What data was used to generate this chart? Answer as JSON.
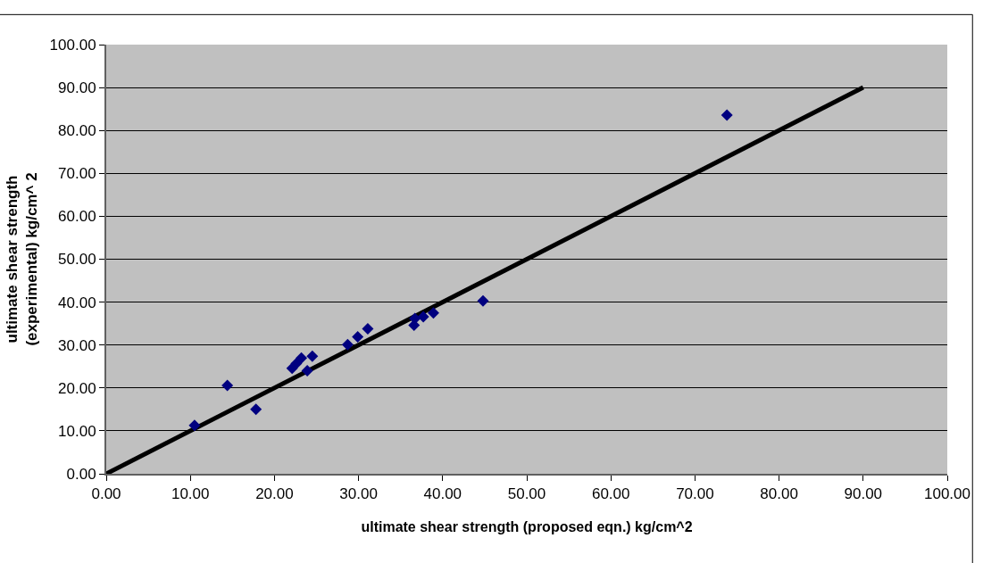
{
  "chart_data": {
    "type": "scatter",
    "xlabel": "ultimate shear strength (proposed eqn.) kg/cm^2",
    "ylabel": "ultimate shear strength (experimental) kg/cm^ 2",
    "series": [
      {
        "color": "#000080",
        "marker": "diamond",
        "x": [
          10.5,
          14.4,
          17.8,
          22.1,
          22.6,
          23.2,
          23.9,
          24.5,
          28.7,
          29.9,
          31.1,
          36.6,
          36.7,
          37.7,
          38.9,
          44.8,
          73.8
        ],
        "values": [
          11.3,
          20.6,
          15.0,
          24.6,
          25.7,
          27.0,
          24.0,
          27.4,
          30.1,
          31.9,
          33.8,
          34.6,
          36.2,
          36.6,
          37.5,
          40.3,
          83.6
        ]
      },
      {
        "type": "line",
        "color": "#000000",
        "marker": "none",
        "x": [
          0,
          90
        ],
        "values": [
          0,
          90
        ]
      }
    ],
    "xlim": [
      0,
      100
    ],
    "ylim": [
      0,
      100
    ],
    "xticks": [
      {
        "value": 0,
        "label": "0.00"
      },
      {
        "value": 10,
        "label": "10.00"
      },
      {
        "value": 20,
        "label": "20.00"
      },
      {
        "value": 30,
        "label": "30.00"
      },
      {
        "value": 40,
        "label": "40.00"
      },
      {
        "value": 50,
        "label": "50.00"
      },
      {
        "value": 60,
        "label": "60.00"
      },
      {
        "value": 70,
        "label": "70.00"
      },
      {
        "value": 80,
        "label": "80.00"
      },
      {
        "value": 90,
        "label": "90.00"
      },
      {
        "value": 100,
        "label": "100.00"
      }
    ],
    "yticks": [
      {
        "value": 0,
        "label": "0.00"
      },
      {
        "value": 10,
        "label": "10.00"
      },
      {
        "value": 20,
        "label": "20.00"
      },
      {
        "value": 30,
        "label": "30.00"
      },
      {
        "value": 40,
        "label": "40.00"
      },
      {
        "value": 50,
        "label": "50.00"
      },
      {
        "value": 60,
        "label": "60.00"
      },
      {
        "value": 70,
        "label": "70.00"
      },
      {
        "value": 80,
        "label": "80.00"
      },
      {
        "value": 90,
        "label": "90.00"
      },
      {
        "value": 100,
        "label": "100.00"
      }
    ],
    "grid": "y"
  }
}
